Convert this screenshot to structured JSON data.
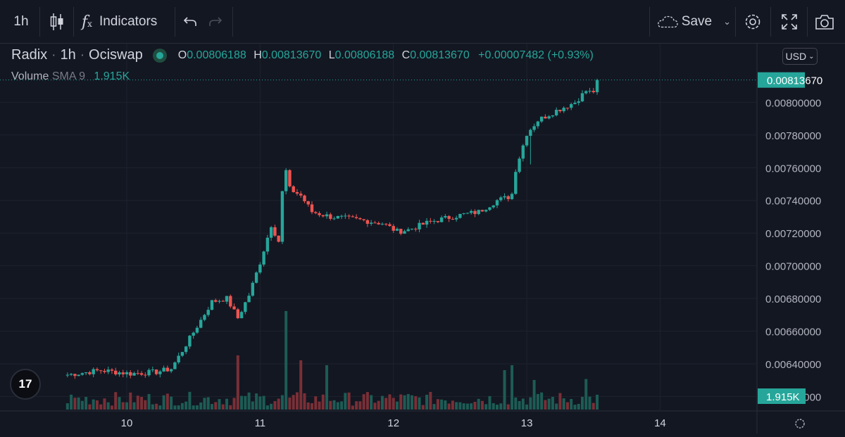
{
  "toolbar": {
    "interval": "1h",
    "indicators_label": "Indicators",
    "save_label": "Save"
  },
  "legend": {
    "symbol": "Radix",
    "interval": "1h",
    "exchange": "Ociswap",
    "open_key": "O",
    "open": "0.00806188",
    "high_key": "H",
    "high": "0.00813670",
    "low_key": "L",
    "low": "0.00806188",
    "close_key": "C",
    "close": "0.00813670",
    "change": "+0.00007482 (+0.93%)"
  },
  "volume_legend": {
    "name": "Volume",
    "sma": "SMA 9",
    "value": "1.915K"
  },
  "currency": "USD",
  "price_tag": "0.00813670",
  "volume_tag": "1.915K",
  "logo": "17",
  "colors": {
    "up": "#26a69a",
    "down": "#ef5350",
    "background": "#131722",
    "grid": "#1e222d"
  },
  "chart_data": {
    "type": "candlestick",
    "y_ticks": [
      "0.00620000",
      "0.00640000",
      "0.00660000",
      "0.00680000",
      "0.00700000",
      "0.00720000",
      "0.00740000",
      "0.00760000",
      "0.00780000",
      "0.00800000"
    ],
    "y_tick_values": [
      0.0062,
      0.0064,
      0.0066,
      0.0068,
      0.007,
      0.0072,
      0.0074,
      0.0076,
      0.0078,
      0.008
    ],
    "ylim": [
      0.00612,
      0.00823
    ],
    "x_labels": [
      "10",
      "11",
      "12",
      "13",
      "14"
    ],
    "x_label_hours": [
      16,
      52,
      88,
      124,
      160
    ],
    "hours": 170,
    "waypoints": [
      [
        0,
        0.00633
      ],
      [
        10,
        0.00636
      ],
      [
        18,
        0.00634
      ],
      [
        25,
        0.00635
      ],
      [
        29,
        0.00637
      ],
      [
        32,
        0.00648
      ],
      [
        36,
        0.00663
      ],
      [
        40,
        0.00678
      ],
      [
        44,
        0.0068
      ],
      [
        47,
        0.00668
      ],
      [
        50,
        0.00682
      ],
      [
        53,
        0.00702
      ],
      [
        56,
        0.00725
      ],
      [
        58,
        0.00715
      ],
      [
        59,
        0.00745
      ],
      [
        60,
        0.00758
      ],
      [
        61,
        0.00747
      ],
      [
        64,
        0.00743
      ],
      [
        67,
        0.00733
      ],
      [
        72,
        0.0073
      ],
      [
        80,
        0.00728
      ],
      [
        86,
        0.00726
      ],
      [
        90,
        0.00721
      ],
      [
        93,
        0.00722
      ],
      [
        99,
        0.00727
      ],
      [
        107,
        0.00731
      ],
      [
        112,
        0.00733
      ],
      [
        117,
        0.0074
      ],
      [
        120,
        0.00742
      ],
      [
        121,
        0.00744
      ],
      [
        122,
        0.00759
      ],
      [
        125,
        0.00781
      ],
      [
        128,
        0.00789
      ],
      [
        133,
        0.00795
      ],
      [
        138,
        0.008
      ],
      [
        141,
        0.00807
      ],
      [
        142,
        0.00806188
      ],
      [
        143,
        0.0081367
      ]
    ],
    "volume_spikes": [
      [
        46,
        0.55
      ],
      [
        59,
        1.0
      ],
      [
        63,
        0.5
      ],
      [
        70,
        0.45
      ],
      [
        118,
        0.4
      ],
      [
        120,
        0.45
      ],
      [
        126,
        0.3
      ],
      [
        140,
        0.31
      ]
    ]
  }
}
